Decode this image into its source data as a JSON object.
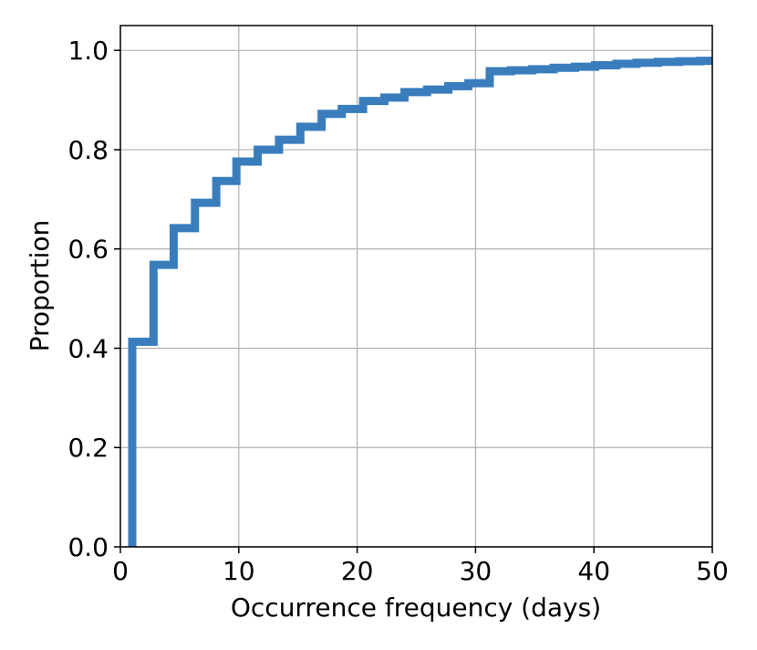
{
  "chart_data": {
    "type": "line",
    "subtype": "ecdf-step",
    "title": "",
    "xlabel": "Occurrence frequency (days)",
    "ylabel": "Proportion",
    "xlim": [
      0,
      50
    ],
    "ylim": [
      0,
      1.05
    ],
    "grid": true,
    "legend": "none",
    "x_ticks": [
      0,
      10,
      20,
      30,
      40,
      50
    ],
    "x_tick_labels": [
      "0",
      "10",
      "20",
      "30",
      "40",
      "50"
    ],
    "y_ticks": [
      0.0,
      0.2,
      0.4,
      0.6,
      0.8,
      1.0
    ],
    "y_tick_labels": [
      "0.0",
      "0.2",
      "0.4",
      "0.6",
      "0.8",
      "1.0"
    ],
    "series": [
      {
        "color": "#3a7dbd",
        "steps": [
          {
            "x": 1.0,
            "y": 0.413
          },
          {
            "x": 2.8,
            "y": 0.568
          },
          {
            "x": 4.5,
            "y": 0.642
          },
          {
            "x": 6.3,
            "y": 0.693
          },
          {
            "x": 8.1,
            "y": 0.737
          },
          {
            "x": 9.8,
            "y": 0.776
          },
          {
            "x": 11.6,
            "y": 0.8
          },
          {
            "x": 13.4,
            "y": 0.82
          },
          {
            "x": 15.2,
            "y": 0.846
          },
          {
            "x": 17.0,
            "y": 0.872
          },
          {
            "x": 18.7,
            "y": 0.882
          },
          {
            "x": 20.5,
            "y": 0.898
          },
          {
            "x": 22.3,
            "y": 0.905
          },
          {
            "x": 24.0,
            "y": 0.916
          },
          {
            "x": 25.9,
            "y": 0.921
          },
          {
            "x": 27.7,
            "y": 0.928
          },
          {
            "x": 29.4,
            "y": 0.934
          },
          {
            "x": 31.2,
            "y": 0.958
          },
          {
            "x": 33.0,
            "y": 0.96
          },
          {
            "x": 34.8,
            "y": 0.962
          },
          {
            "x": 36.6,
            "y": 0.965
          },
          {
            "x": 38.4,
            "y": 0.967
          },
          {
            "x": 40.1,
            "y": 0.97
          },
          {
            "x": 41.9,
            "y": 0.973
          },
          {
            "x": 43.6,
            "y": 0.975
          },
          {
            "x": 45.4,
            "y": 0.977
          },
          {
            "x": 47.2,
            "y": 0.978
          },
          {
            "x": 49.0,
            "y": 0.979
          }
        ]
      }
    ]
  }
}
